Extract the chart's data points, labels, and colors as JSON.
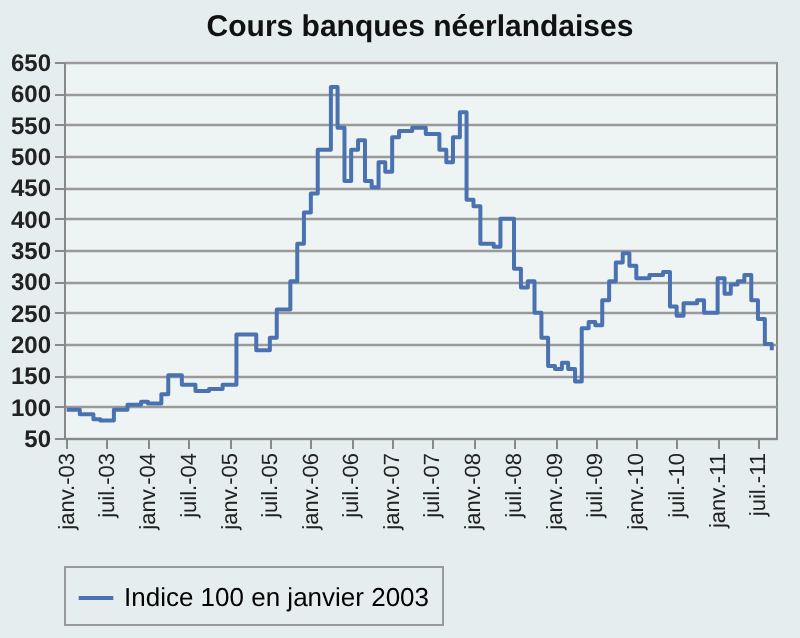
{
  "chart_data": {
    "type": "step",
    "title": "Cours banques néerlandaises",
    "x": [
      "2003-01",
      "2003-03",
      "2003-05",
      "2003-06",
      "2003-08",
      "2003-10",
      "2003-12",
      "2004-01",
      "2004-03",
      "2004-04",
      "2004-06",
      "2004-08",
      "2004-10",
      "2004-12",
      "2005-02",
      "2005-05",
      "2005-07",
      "2005-08",
      "2005-10",
      "2005-11",
      "2005-12",
      "2006-01",
      "2006-02",
      "2006-04",
      "2006-05",
      "2006-06",
      "2006-07",
      "2006-08",
      "2006-09",
      "2006-10",
      "2006-11",
      "2006-12",
      "2007-01",
      "2007-02",
      "2007-04",
      "2007-06",
      "2007-08",
      "2007-09",
      "2007-10",
      "2007-11",
      "2007-12",
      "2008-01",
      "2008-02",
      "2008-04",
      "2008-05",
      "2008-07",
      "2008-08",
      "2008-09",
      "2008-10",
      "2008-11",
      "2008-12",
      "2009-01",
      "2009-02",
      "2009-03",
      "2009-04",
      "2009-05",
      "2009-06",
      "2009-07",
      "2009-08",
      "2009-09",
      "2009-10",
      "2009-11",
      "2009-12",
      "2010-01",
      "2010-03",
      "2010-05",
      "2010-06",
      "2010-07",
      "2010-08",
      "2010-10",
      "2010-11",
      "2011-01",
      "2011-02",
      "2011-03",
      "2011-04",
      "2011-05",
      "2011-06",
      "2011-07",
      "2011-08",
      "2011-09"
    ],
    "series": [
      {
        "name": "Indice 100 en janvier 2003",
        "color": "#4a72b0",
        "values": [
          95,
          88,
          80,
          78,
          95,
          103,
          108,
          105,
          120,
          150,
          135,
          125,
          128,
          135,
          215,
          190,
          210,
          255,
          300,
          360,
          410,
          440,
          510,
          610,
          545,
          460,
          510,
          525,
          460,
          450,
          490,
          475,
          530,
          540,
          545,
          535,
          510,
          490,
          530,
          570,
          430,
          420,
          360,
          355,
          400,
          320,
          290,
          300,
          250,
          210,
          165,
          160,
          170,
          160,
          140,
          225,
          235,
          230,
          270,
          300,
          330,
          345,
          325,
          305,
          310,
          315,
          260,
          245,
          265,
          270,
          250,
          305,
          280,
          295,
          300,
          310,
          270,
          240,
          200,
          190
        ]
      }
    ],
    "xlim": [
      "2002-12-20",
      "2011-09-20"
    ],
    "xticks": [
      {
        "value": "2003-01",
        "label": "janv.-03"
      },
      {
        "value": "2003-07",
        "label": "juil.-03"
      },
      {
        "value": "2004-01",
        "label": "janv.-04"
      },
      {
        "value": "2004-07",
        "label": "juil.-04"
      },
      {
        "value": "2005-01",
        "label": "janv.-05"
      },
      {
        "value": "2005-07",
        "label": "juil.-05"
      },
      {
        "value": "2006-01",
        "label": "janv.-06"
      },
      {
        "value": "2006-07",
        "label": "juil.-06"
      },
      {
        "value": "2007-01",
        "label": "janv.-07"
      },
      {
        "value": "2007-07",
        "label": "juil.-07"
      },
      {
        "value": "2008-01",
        "label": "janv.-08"
      },
      {
        "value": "2008-07",
        "label": "juil.-08"
      },
      {
        "value": "2009-01",
        "label": "janv.-09"
      },
      {
        "value": "2009-07",
        "label": "juil.-09"
      },
      {
        "value": "2010-01",
        "label": "janv.-10"
      },
      {
        "value": "2010-07",
        "label": "juil.-10"
      },
      {
        "value": "2011-01",
        "label": "janv.-11"
      },
      {
        "value": "2011-07",
        "label": "juil.-11"
      }
    ],
    "ylim": [
      50,
      650
    ],
    "yticks": [
      50,
      100,
      150,
      200,
      250,
      300,
      350,
      400,
      450,
      500,
      550,
      600,
      650
    ],
    "grid": "y",
    "legend": "bottom",
    "line_style": "solid",
    "marker": "none"
  }
}
